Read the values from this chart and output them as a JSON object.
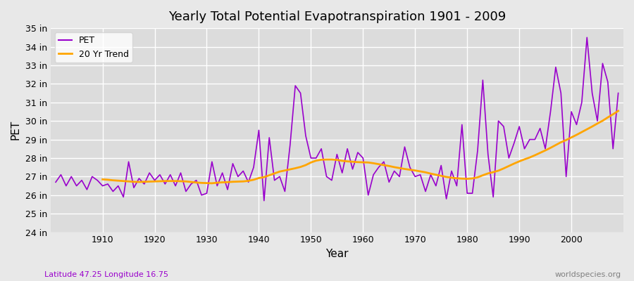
{
  "title": "Yearly Total Potential Evapotranspiration 1901 - 2009",
  "xlabel": "Year",
  "ylabel": "PET",
  "pet_color": "#9900CC",
  "trend_color": "#FFA500",
  "bg_color": "#E8E8E8",
  "plot_bg_color": "#DCDCDC",
  "grid_color": "#FFFFFF",
  "ylim": [
    24,
    35
  ],
  "yticks": [
    24,
    25,
    26,
    27,
    28,
    29,
    30,
    31,
    32,
    33,
    34,
    35
  ],
  "ytick_labels": [
    "24 in",
    "25 in",
    "26 in",
    "27 in",
    "28 in",
    "29 in",
    "30 in",
    "31 in",
    "32 in",
    "33 in",
    "34 in",
    "35 in"
  ],
  "years": [
    1901,
    1902,
    1903,
    1904,
    1905,
    1906,
    1907,
    1908,
    1909,
    1910,
    1911,
    1912,
    1913,
    1914,
    1915,
    1916,
    1917,
    1918,
    1919,
    1920,
    1921,
    1922,
    1923,
    1924,
    1925,
    1926,
    1927,
    1928,
    1929,
    1930,
    1931,
    1932,
    1933,
    1934,
    1935,
    1936,
    1937,
    1938,
    1939,
    1940,
    1941,
    1942,
    1943,
    1944,
    1945,
    1946,
    1947,
    1948,
    1949,
    1950,
    1951,
    1952,
    1953,
    1954,
    1955,
    1956,
    1957,
    1958,
    1959,
    1960,
    1961,
    1962,
    1963,
    1964,
    1965,
    1966,
    1967,
    1968,
    1969,
    1970,
    1971,
    1972,
    1973,
    1974,
    1975,
    1976,
    1977,
    1978,
    1979,
    1980,
    1981,
    1982,
    1983,
    1984,
    1985,
    1986,
    1987,
    1988,
    1989,
    1990,
    1991,
    1992,
    1993,
    1994,
    1995,
    1996,
    1997,
    1998,
    1999,
    2000,
    2001,
    2002,
    2003,
    2004,
    2005,
    2006,
    2007,
    2008,
    2009
  ],
  "pet_values": [
    26.7,
    27.1,
    26.5,
    27.0,
    26.5,
    26.8,
    26.3,
    27.0,
    26.8,
    26.5,
    26.6,
    26.2,
    26.5,
    25.9,
    27.8,
    26.4,
    26.9,
    26.6,
    27.2,
    26.8,
    27.1,
    26.6,
    27.1,
    26.5,
    27.2,
    26.2,
    26.6,
    26.8,
    26.0,
    26.1,
    27.8,
    26.5,
    27.2,
    26.3,
    27.7,
    27.0,
    27.3,
    26.7,
    27.5,
    29.5,
    25.7,
    29.1,
    26.8,
    27.0,
    26.2,
    28.7,
    31.9,
    31.5,
    29.2,
    28.0,
    28.0,
    28.5,
    27.0,
    26.8,
    28.2,
    27.2,
    28.5,
    27.4,
    28.3,
    28.0,
    26.0,
    27.1,
    27.5,
    27.8,
    26.7,
    27.3,
    27.0,
    28.6,
    27.5,
    27.0,
    27.1,
    26.2,
    27.1,
    26.5,
    27.6,
    25.8,
    27.3,
    26.5,
    29.8,
    26.1,
    26.1,
    28.4,
    32.2,
    28.2,
    25.9,
    30.0,
    29.7,
    28.0,
    28.8,
    29.7,
    28.5,
    29.0,
    29.0,
    29.6,
    28.5,
    30.5,
    32.9,
    31.5,
    27.0,
    30.5,
    29.8,
    31.0,
    34.5,
    31.5,
    30.0,
    33.1,
    32.1,
    28.5,
    31.5
  ],
  "trend_years": [
    1910,
    1911,
    1912,
    1913,
    1914,
    1915,
    1916,
    1917,
    1918,
    1919,
    1920,
    1921,
    1922,
    1923,
    1924,
    1925,
    1926,
    1927,
    1928,
    1929,
    1930,
    1931,
    1932,
    1933,
    1934,
    1935,
    1936,
    1937,
    1938,
    1939,
    1940,
    1941,
    1942,
    1943,
    1944,
    1945,
    1946,
    1947,
    1948,
    1949,
    1950,
    1951,
    1952,
    1953,
    1954,
    1955,
    1956,
    1957,
    1958,
    1959,
    1960,
    1961,
    1962,
    1963,
    1964,
    1965,
    1966,
    1967,
    1968,
    1969,
    1970,
    1971,
    1972,
    1973,
    1974,
    1975,
    1976,
    1977,
    1978,
    1979,
    1980,
    1981,
    1982,
    1983,
    1984,
    1985,
    1986,
    1987,
    1988,
    1989,
    1990,
    1991,
    1992,
    1993,
    1994,
    1995,
    1996,
    1997,
    1998,
    1999,
    2000,
    2001,
    2002,
    2003,
    2004,
    2005,
    2006,
    2007,
    2008,
    2009
  ],
  "trend_values": [
    26.85,
    26.83,
    26.8,
    26.78,
    26.76,
    26.74,
    26.72,
    26.71,
    26.72,
    26.73,
    26.74,
    26.75,
    26.76,
    26.76,
    26.76,
    26.75,
    26.74,
    26.71,
    26.68,
    26.66,
    26.65,
    26.64,
    26.67,
    26.69,
    26.7,
    26.72,
    26.73,
    26.74,
    26.77,
    26.83,
    26.92,
    26.97,
    27.07,
    27.17,
    27.27,
    27.33,
    27.39,
    27.45,
    27.52,
    27.62,
    27.76,
    27.86,
    27.91,
    27.92,
    27.92,
    27.9,
    27.85,
    27.82,
    27.8,
    27.78,
    27.77,
    27.76,
    27.72,
    27.67,
    27.62,
    27.57,
    27.51,
    27.46,
    27.41,
    27.37,
    27.33,
    27.28,
    27.23,
    27.16,
    27.1,
    27.04,
    26.98,
    26.94,
    26.91,
    26.89,
    26.88,
    26.9,
    26.96,
    27.07,
    27.17,
    27.24,
    27.32,
    27.44,
    27.57,
    27.7,
    27.82,
    27.93,
    28.03,
    28.15,
    28.28,
    28.41,
    28.55,
    28.7,
    28.85,
    28.97,
    29.11,
    29.25,
    29.4,
    29.55,
    29.7,
    29.86,
    30.01,
    30.19,
    30.36,
    30.54
  ],
  "footnote_left": "Latitude 47.25 Longitude 16.75",
  "footnote_right": "worldspecies.org",
  "legend_pet_label": "PET",
  "legend_trend_label": "20 Yr Trend"
}
